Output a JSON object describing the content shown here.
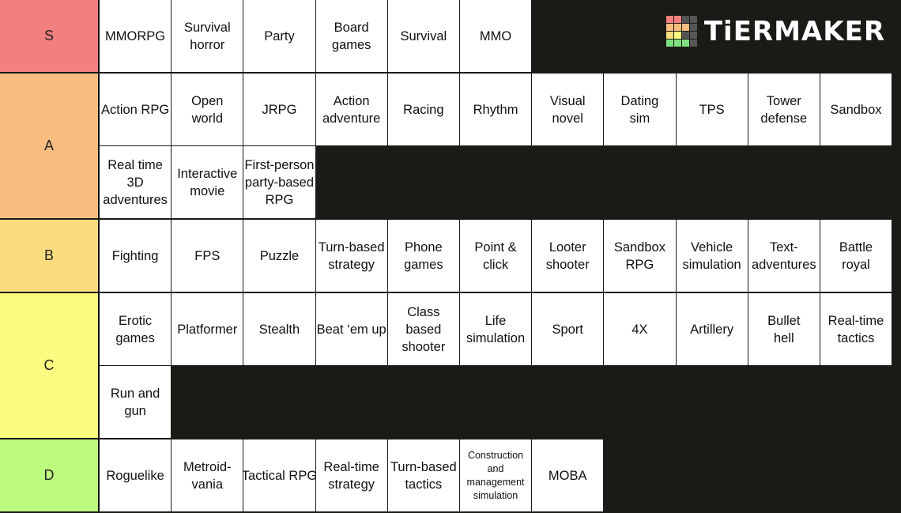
{
  "logo": "TiERMAKER",
  "tiers": [
    {
      "label": "S",
      "color": "#f47f7f",
      "items": [
        [
          "MMORPG"
        ],
        [
          "Survival",
          "horror"
        ],
        [
          "Party"
        ],
        [
          "Board",
          "games"
        ],
        [
          "Survival"
        ],
        [
          "MMO"
        ]
      ]
    },
    {
      "label": "A",
      "color": "#f9bd7f",
      "items": [
        [
          "Action RPG"
        ],
        [
          "Open",
          "world"
        ],
        [
          "JRPG"
        ],
        [
          "Action",
          "adventure"
        ],
        [
          "Racing"
        ],
        [
          "Rhythm"
        ],
        [
          "Visual",
          "novel"
        ],
        [
          "Dating",
          "sim"
        ],
        [
          "TPS"
        ],
        [
          "Tower",
          "defense"
        ],
        [
          "Sandbox"
        ],
        [
          "Real time",
          "3D",
          "adventures"
        ],
        [
          "Interactive",
          "movie"
        ],
        [
          "First-person",
          "party-based",
          "RPG"
        ]
      ]
    },
    {
      "label": "B",
      "color": "#fbdd7f",
      "items": [
        [
          "Fighting"
        ],
        [
          "FPS"
        ],
        [
          "Puzzle"
        ],
        [
          "Turn-based",
          "strategy"
        ],
        [
          "Phone",
          "games"
        ],
        [
          "Point &",
          "click"
        ],
        [
          "Looter",
          "shooter"
        ],
        [
          "Sandbox",
          "RPG"
        ],
        [
          "Vehicle",
          "simulation"
        ],
        [
          "Text-",
          "adventures"
        ],
        [
          "Battle",
          "royal"
        ]
      ]
    },
    {
      "label": "C",
      "color": "#fbfb7f",
      "items": [
        [
          "Erotic",
          "games"
        ],
        [
          "Platformer"
        ],
        [
          "Stealth"
        ],
        [
          "Beat ‘em up"
        ],
        [
          "Class",
          "based",
          "shooter"
        ],
        [
          "Life",
          "simulation"
        ],
        [
          "Sport"
        ],
        [
          "4X"
        ],
        [
          "Artillery"
        ],
        [
          "Bullet",
          "hell"
        ],
        [
          "Real-time",
          "tactics"
        ],
        [
          "Run and",
          "gun"
        ]
      ]
    },
    {
      "label": "D",
      "color": "#bdfb7f",
      "items": [
        [
          "Roguelike"
        ],
        [
          "Metroid-",
          "vania"
        ],
        [
          "Tactical RPG"
        ],
        [
          "Real-time",
          "strategy"
        ],
        [
          "Turn-based",
          "tactics"
        ],
        [
          "Construction",
          "and",
          "management",
          "simulation"
        ],
        [
          "MOBA"
        ]
      ]
    }
  ]
}
